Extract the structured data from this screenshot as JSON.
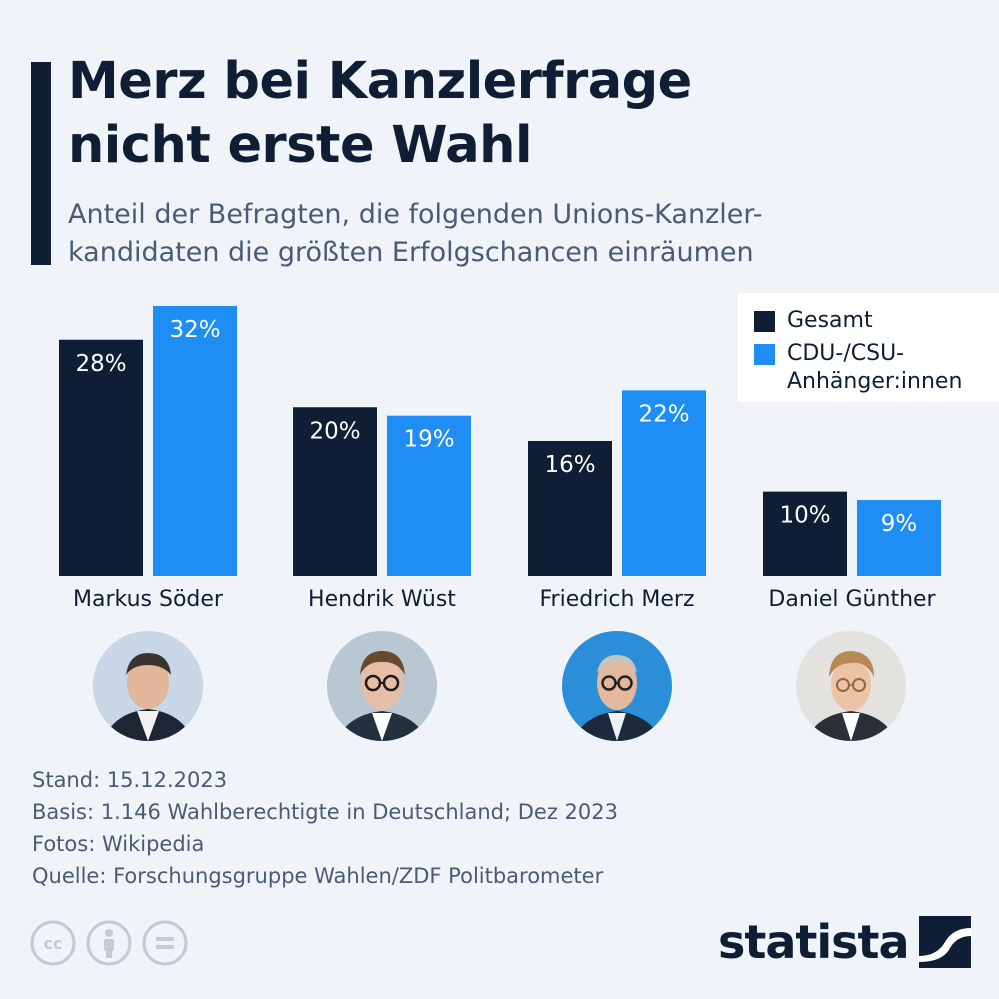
{
  "title_line1": "Merz bei Kanzlerfrage",
  "title_line2": "nicht erste Wahl",
  "subtitle_line1": "Anteil der Befragten, die folgenden Unions-Kanzler-",
  "subtitle_line2": "kandidaten die größten Erfolgschancen einräumen",
  "colors": {
    "gesamt": "#0f1e35",
    "anhaenger": "#1f8ef4",
    "background": "#f0f3f8"
  },
  "chart_data": {
    "type": "bar",
    "categories": [
      "Markus Söder",
      "Hendrik Wüst",
      "Friedrich Merz",
      "Daniel Günther"
    ],
    "series": [
      {
        "name": "Gesamt",
        "values": [
          28,
          20,
          16,
          10
        ]
      },
      {
        "name": "CDU-/CSU-Anhänger:innen",
        "values": [
          32,
          19,
          22,
          9
        ]
      }
    ],
    "value_suffix": "%",
    "ylim": [
      0,
      32
    ],
    "grid": false,
    "legend_position": "top-right"
  },
  "legend": {
    "item1": "Gesamt",
    "item2": "CDU-/CSU-Anhänger:innen"
  },
  "footer": {
    "stand": "Stand: 15.12.2023",
    "basis": "Basis: 1.146 Wahlberechtigte in Deutschland; Dez 2023",
    "fotos": "Fotos: Wikipedia",
    "quelle": "Quelle: Forschungsgruppe Wahlen/ZDF Politbarometer"
  },
  "logo": {
    "text": "statista"
  },
  "license_icons": [
    "cc-icon",
    "by-attribution-icon",
    "no-derivatives-icon"
  ]
}
